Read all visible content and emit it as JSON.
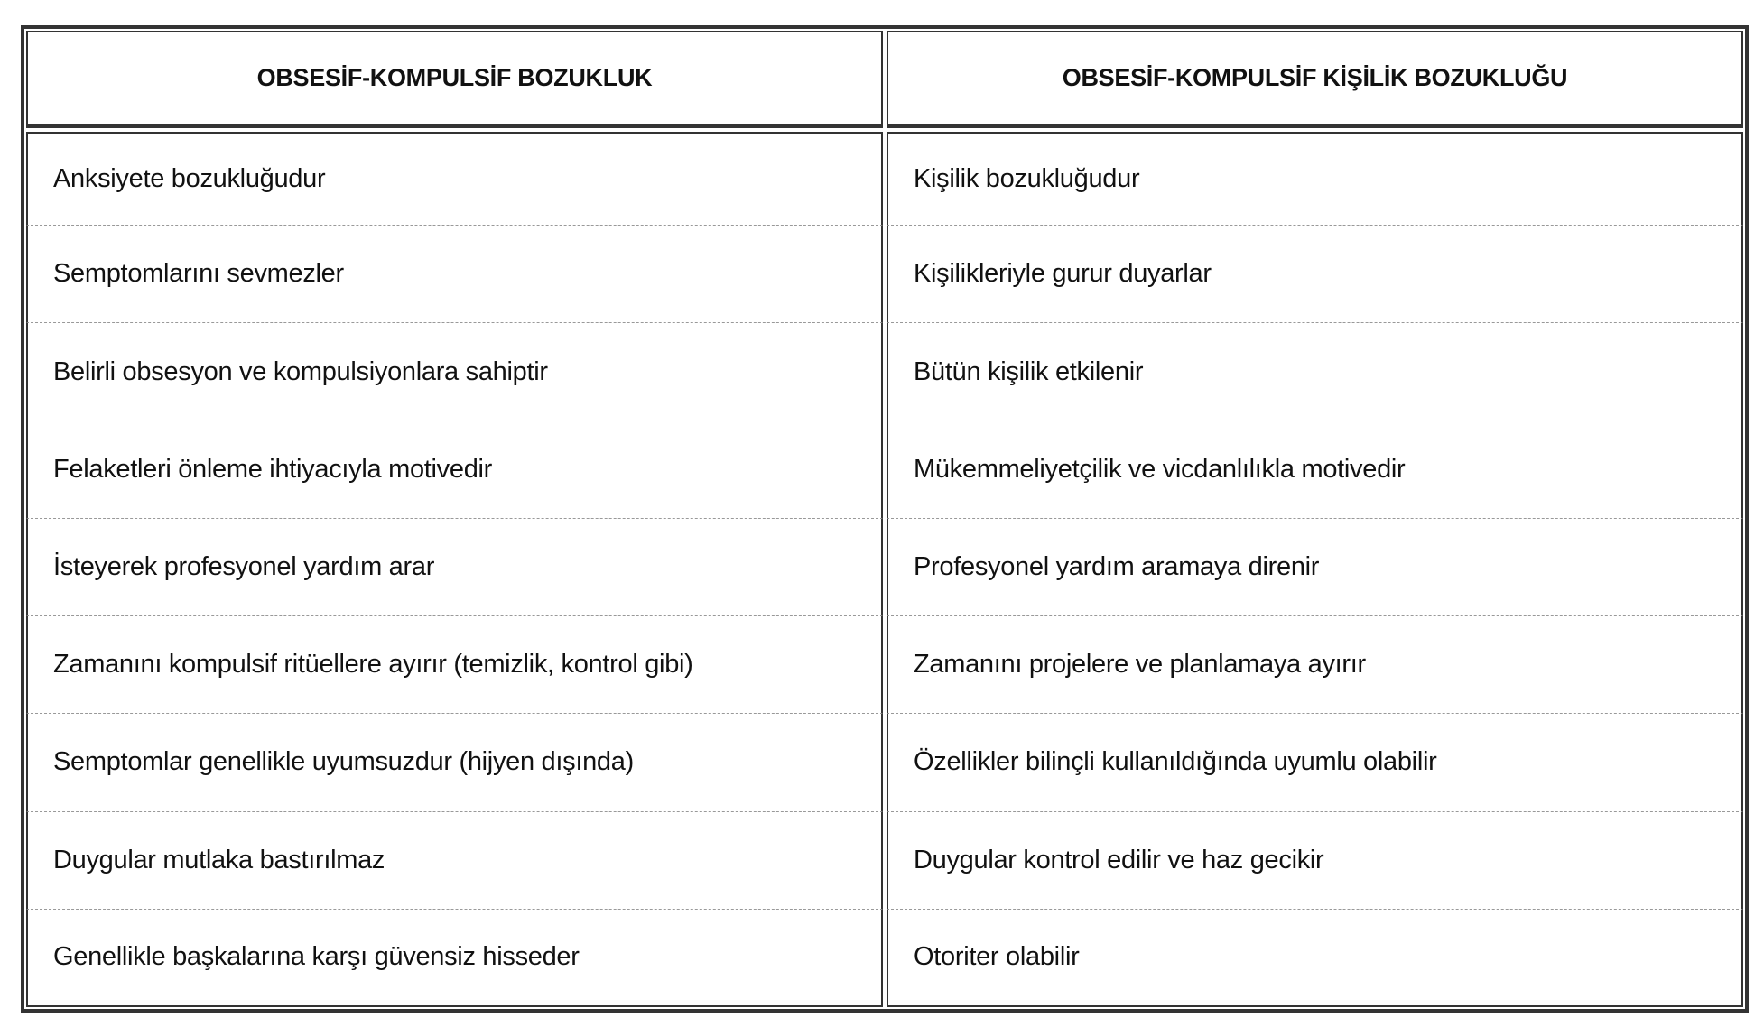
{
  "table": {
    "headers": [
      "OBSESİF-KOMPULSİF BOZUKLUK",
      "OBSESİF-KOMPULSİF KİŞİLİK BOZUKLUĞU"
    ],
    "rows": [
      [
        "Anksiyete bozukluğudur",
        "Kişilik bozukluğudur"
      ],
      [
        "Semptomlarını sevmezler",
        "Kişilikleriyle gurur duyarlar"
      ],
      [
        "Belirli obsesyon ve kompulsiyonlara sahiptir",
        "Bütün kişilik etkilenir"
      ],
      [
        "Felaketleri önleme ihtiyacıyla motivedir",
        "Mükemmeliyetçilik ve vicdanlılıkla motivedir"
      ],
      [
        "İsteyerek profesyonel yardım arar",
        "Profesyonel yardım aramaya direnir"
      ],
      [
        "Zamanını kompulsif ritüellere ayırır (temizlik, kontrol gibi)",
        "Zamanını projelere ve planlamaya ayırır"
      ],
      [
        "Semptomlar genellikle uyumsuzdur (hijyen dışında)",
        "Özellikler bilinçli kullanıldığında uyumlu olabilir"
      ],
      [
        "Duygular mutlaka bastırılmaz",
        "Duygular kontrol edilir ve haz gecikir"
      ],
      [
        "Genellikle başkalarına karşı güvensiz hisseder",
        "Otoriter olabilir"
      ]
    ]
  }
}
